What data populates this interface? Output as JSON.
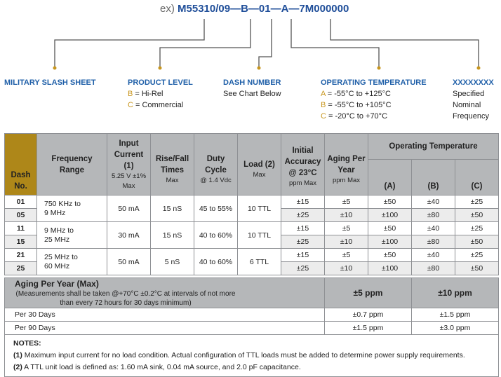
{
  "code": {
    "prefix": "ex)",
    "value": "M55310/09—B—01—A—7M000000"
  },
  "legend": {
    "slash": {
      "title": "MILITARY SLASH SHEET"
    },
    "level": {
      "title": "PRODUCT LEVEL",
      "lines": [
        {
          "k": "B",
          "v": " = Hi-Rel"
        },
        {
          "k": "C",
          "v": " = Commercial"
        }
      ]
    },
    "dash": {
      "title": "DASH NUMBER",
      "text": "See Chart Below"
    },
    "temp": {
      "title": "OPERATING TEMPERATURE",
      "lines": [
        {
          "k": "A",
          "v": " = -55°C to +125°C"
        },
        {
          "k": "B",
          "v": " = -55°C to +105°C"
        },
        {
          "k": "C",
          "v": " = -20°C to +70°C"
        }
      ]
    },
    "freq": {
      "title": "XXXXXXXX",
      "lines": [
        "Specified",
        "Nominal",
        "Frequency"
      ]
    }
  },
  "colors": {
    "accent_gold": "#c8961e",
    "title_blue": "#1f5fa8",
    "header_gray": "#b5b7b9",
    "dash_header": "#ae8719"
  },
  "table": {
    "headers": {
      "dash": "Dash No.",
      "freq": "Frequency Range",
      "input": "Input Current (1)",
      "input_sub": "5.25 V ±1%",
      "input_sub2": "Max",
      "rise": "Rise/Fall Times",
      "rise_sub": "Max",
      "duty": "Duty Cycle",
      "duty_sub": "@ 1.4 Vdc",
      "load": "Load (2)",
      "load_sub": "Max",
      "init": "Initial Accuracy @ 23°C",
      "init_sub": "ppm Max",
      "aging": "Aging Per Year",
      "aging_sub": "ppm Max",
      "optemp": "Operating Temperature",
      "a": "(A)",
      "b": "(B)",
      "c": "(C)"
    },
    "groups": [
      {
        "freq": [
          "750 KHz to",
          "9 MHz"
        ],
        "input": "50 mA",
        "rise": "15 nS",
        "duty": "45 to 55%",
        "load": "10 TTL",
        "rows": [
          {
            "dash": "01",
            "init": "±15",
            "aging": "±5",
            "a": "±50",
            "b": "±40",
            "c": "±25"
          },
          {
            "dash": "05",
            "init": "±25",
            "aging": "±10",
            "a": "±100",
            "b": "±80",
            "c": "±50"
          }
        ]
      },
      {
        "freq": [
          "9 MHz to",
          "25 MHz"
        ],
        "input": "30 mA",
        "rise": "15 nS",
        "duty": "40 to 60%",
        "load": "10 TTL",
        "rows": [
          {
            "dash": "11",
            "init": "±15",
            "aging": "±5",
            "a": "±50",
            "b": "±40",
            "c": "±25"
          },
          {
            "dash": "15",
            "init": "±25",
            "aging": "±10",
            "a": "±100",
            "b": "±80",
            "c": "±50"
          }
        ]
      },
      {
        "freq": [
          "25 MHz to",
          "60 MHz"
        ],
        "input": "50 mA",
        "rise": "5 nS",
        "duty": "40 to 60%",
        "load": "6 TTL",
        "rows": [
          {
            "dash": "21",
            "init": "±15",
            "aging": "±5",
            "a": "±50",
            "b": "±40",
            "c": "±25"
          },
          {
            "dash": "25",
            "init": "±25",
            "aging": "±10",
            "a": "±100",
            "b": "±80",
            "c": "±50"
          }
        ]
      }
    ],
    "aging": {
      "title": "Aging Per Year (Max)",
      "note": "(Measurements shall be taken @+70°C ±0.2°C at intervals of not more than every 72 hours for 30 days minimum)",
      "col1": "±5 ppm",
      "col2": "±10 ppm",
      "rows": [
        {
          "label": "Per 30 Days",
          "v1": "±0.7 ppm",
          "v2": "±1.5 ppm"
        },
        {
          "label": "Per 90 Days",
          "v1": "±1.5 ppm",
          "v2": "±3.0 ppm"
        }
      ]
    },
    "notes": {
      "title": "NOTES:",
      "items": [
        {
          "n": "(1)",
          "t": " Maximum input current for no load condition. Actual configuration of TTL loads must be added to determine power supply requirements."
        },
        {
          "n": "(2)",
          "t": " A TTL unit load is defined as: 1.60 mA sink, 0.04 mA source, and 2.0 pF capacitance."
        }
      ]
    }
  }
}
